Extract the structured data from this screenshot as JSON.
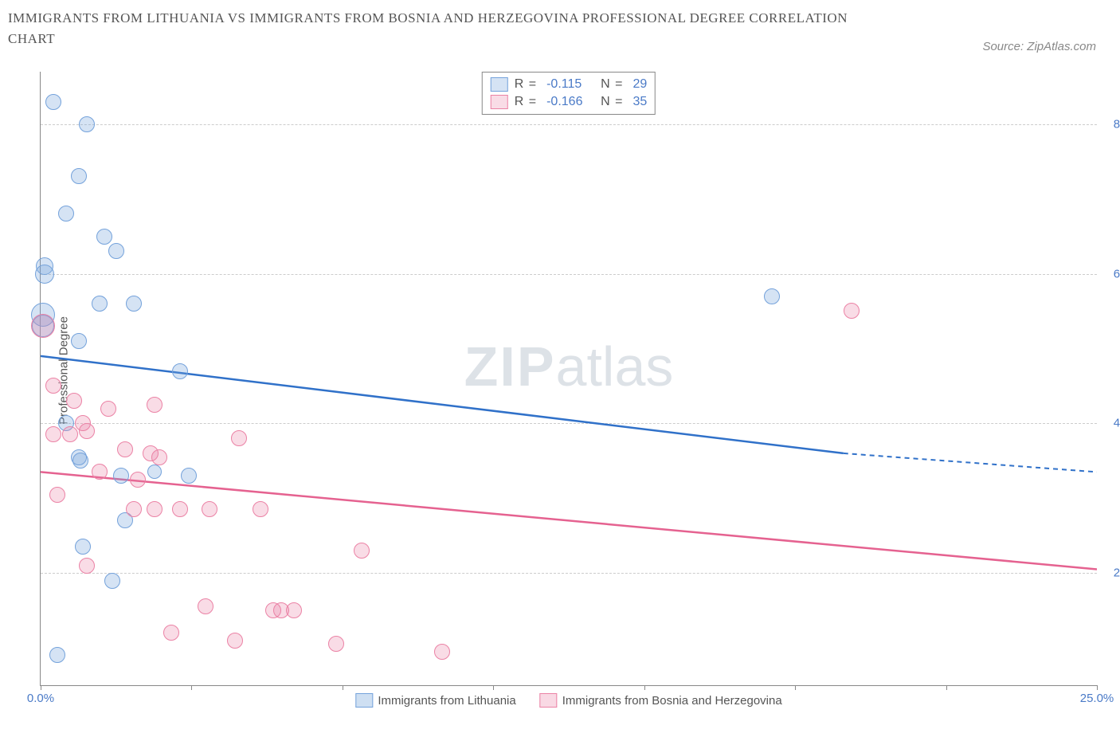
{
  "title": "IMMIGRANTS FROM LITHUANIA VS IMMIGRANTS FROM BOSNIA AND HERZEGOVINA PROFESSIONAL DEGREE CORRELATION CHART",
  "source": "Source: ZipAtlas.com",
  "y_axis_label": "Professional Degree",
  "watermark_zip": "ZIP",
  "watermark_atlas": "atlas",
  "chart": {
    "type": "scatter",
    "xlim": [
      0,
      25
    ],
    "ylim": [
      0.5,
      8.7
    ],
    "x_ticks": [
      0,
      3.57,
      7.14,
      10.71,
      14.29,
      17.86,
      21.43,
      25
    ],
    "x_tick_labels": {
      "0": "0.0%",
      "25": "25.0%"
    },
    "y_ticks": [
      2,
      4,
      6,
      8
    ],
    "y_tick_labels": {
      "2": "2.0%",
      "4": "4.0%",
      "6": "6.0%",
      "8": "8.0%"
    },
    "grid_color": "#cccccc",
    "background_color": "#ffffff",
    "series": [
      {
        "name": "Immigrants from Lithuania",
        "fill": "rgba(116,162,219,0.30)",
        "stroke": "#74a2db",
        "line_color": "#3071c9",
        "R": "-0.115",
        "N": "29",
        "trend": {
          "x1": 0,
          "y1": 4.9,
          "x2": 19,
          "y2": 3.6,
          "dash_to_x": 25,
          "dash_to_y": 3.35
        },
        "points": [
          {
            "x": 0.3,
            "y": 8.3,
            "r": 9
          },
          {
            "x": 1.1,
            "y": 8.0,
            "r": 9
          },
          {
            "x": 0.9,
            "y": 7.3,
            "r": 9
          },
          {
            "x": 0.6,
            "y": 6.8,
            "r": 9
          },
          {
            "x": 1.5,
            "y": 6.5,
            "r": 9
          },
          {
            "x": 1.8,
            "y": 6.3,
            "r": 9
          },
          {
            "x": 0.1,
            "y": 6.1,
            "r": 10
          },
          {
            "x": 0.1,
            "y": 6.0,
            "r": 11
          },
          {
            "x": 1.4,
            "y": 5.6,
            "r": 9
          },
          {
            "x": 2.2,
            "y": 5.6,
            "r": 9
          },
          {
            "x": 0.05,
            "y": 5.45,
            "r": 14
          },
          {
            "x": 0.05,
            "y": 5.3,
            "r": 13
          },
          {
            "x": 0.9,
            "y": 5.1,
            "r": 9
          },
          {
            "x": 17.3,
            "y": 5.7,
            "r": 9
          },
          {
            "x": 3.3,
            "y": 4.7,
            "r": 9
          },
          {
            "x": 0.6,
            "y": 4.0,
            "r": 9
          },
          {
            "x": 0.9,
            "y": 3.55,
            "r": 9
          },
          {
            "x": 0.95,
            "y": 3.5,
            "r": 9
          },
          {
            "x": 2.7,
            "y": 3.35,
            "r": 8
          },
          {
            "x": 1.9,
            "y": 3.3,
            "r": 9
          },
          {
            "x": 3.5,
            "y": 3.3,
            "r": 9
          },
          {
            "x": 2.0,
            "y": 2.7,
            "r": 9
          },
          {
            "x": 1.0,
            "y": 2.35,
            "r": 9
          },
          {
            "x": 1.7,
            "y": 1.9,
            "r": 9
          },
          {
            "x": 0.4,
            "y": 0.9,
            "r": 9
          }
        ]
      },
      {
        "name": "Immigrants from Bosnia and Herzegovina",
        "fill": "rgba(235,130,165,0.28)",
        "stroke": "#eb82a5",
        "line_color": "#e56290",
        "R": "-0.166",
        "N": "35",
        "trend": {
          "x1": 0,
          "y1": 3.35,
          "x2": 25,
          "y2": 2.05
        },
        "points": [
          {
            "x": 19.2,
            "y": 5.5,
            "r": 9
          },
          {
            "x": 0.05,
            "y": 5.3,
            "r": 14
          },
          {
            "x": 0.3,
            "y": 4.5,
            "r": 9
          },
          {
            "x": 0.8,
            "y": 4.3,
            "r": 9
          },
          {
            "x": 1.6,
            "y": 4.2,
            "r": 9
          },
          {
            "x": 2.7,
            "y": 4.25,
            "r": 9
          },
          {
            "x": 1.0,
            "y": 4.0,
            "r": 9
          },
          {
            "x": 1.1,
            "y": 3.9,
            "r": 9
          },
          {
            "x": 0.3,
            "y": 3.85,
            "r": 9
          },
          {
            "x": 0.7,
            "y": 3.85,
            "r": 9
          },
          {
            "x": 4.7,
            "y": 3.8,
            "r": 9
          },
          {
            "x": 2.0,
            "y": 3.65,
            "r": 9
          },
          {
            "x": 2.6,
            "y": 3.6,
            "r": 9
          },
          {
            "x": 2.8,
            "y": 3.55,
            "r": 9
          },
          {
            "x": 1.4,
            "y": 3.35,
            "r": 9
          },
          {
            "x": 2.3,
            "y": 3.25,
            "r": 9
          },
          {
            "x": 0.4,
            "y": 3.05,
            "r": 9
          },
          {
            "x": 2.2,
            "y": 2.85,
            "r": 9
          },
          {
            "x": 2.7,
            "y": 2.85,
            "r": 9
          },
          {
            "x": 3.3,
            "y": 2.85,
            "r": 9
          },
          {
            "x": 4.0,
            "y": 2.85,
            "r": 9
          },
          {
            "x": 5.2,
            "y": 2.85,
            "r": 9
          },
          {
            "x": 7.6,
            "y": 2.3,
            "r": 9
          },
          {
            "x": 1.1,
            "y": 2.1,
            "r": 9
          },
          {
            "x": 3.9,
            "y": 1.55,
            "r": 9
          },
          {
            "x": 5.5,
            "y": 1.5,
            "r": 9
          },
          {
            "x": 5.7,
            "y": 1.5,
            "r": 9
          },
          {
            "x": 6.0,
            "y": 1.5,
            "r": 9
          },
          {
            "x": 3.1,
            "y": 1.2,
            "r": 9
          },
          {
            "x": 4.6,
            "y": 1.1,
            "r": 9
          },
          {
            "x": 7.0,
            "y": 1.05,
            "r": 9
          },
          {
            "x": 9.5,
            "y": 0.95,
            "r": 9
          }
        ]
      }
    ],
    "bottom_legend": [
      {
        "label": "Immigrants from Lithuania",
        "fill": "rgba(116,162,219,0.35)",
        "stroke": "#74a2db"
      },
      {
        "label": "Immigrants from Bosnia and Herzegovina",
        "fill": "rgba(235,130,165,0.30)",
        "stroke": "#eb82a5"
      }
    ]
  }
}
